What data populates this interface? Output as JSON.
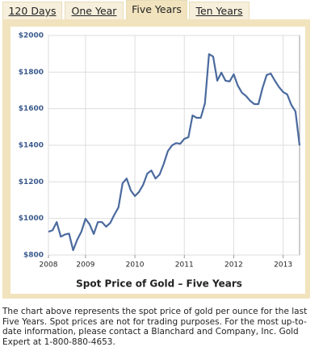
{
  "tabs": [
    {
      "label": "120 Days"
    },
    {
      "label": "One Year"
    },
    {
      "label": "Five Years"
    },
    {
      "label": "Ten Years"
    }
  ],
  "chart_data": {
    "type": "line",
    "title": "Spot Price of Gold – Five Years",
    "x": [
      2008.25,
      2008.333,
      2008.417,
      2008.5,
      2008.583,
      2008.667,
      2008.75,
      2008.833,
      2008.917,
      2009,
      2009.083,
      2009.167,
      2009.25,
      2009.333,
      2009.417,
      2009.5,
      2009.583,
      2009.667,
      2009.75,
      2009.833,
      2009.917,
      2010,
      2010.083,
      2010.167,
      2010.25,
      2010.333,
      2010.417,
      2010.5,
      2010.583,
      2010.667,
      2010.75,
      2010.833,
      2010.917,
      2011,
      2011.083,
      2011.167,
      2011.25,
      2011.333,
      2011.417,
      2011.5,
      2011.583,
      2011.667,
      2011.75,
      2011.833,
      2011.917,
      2012,
      2012.083,
      2012.167,
      2012.25,
      2012.333,
      2012.417,
      2012.5,
      2012.583,
      2012.667,
      2012.75,
      2012.833,
      2012.917,
      2013,
      2013.083,
      2013.167,
      2013.25,
      2013.333
    ],
    "series": [
      {
        "color": "#4a6a9e",
        "values": [
          927,
          935,
          980,
          900,
          912,
          917,
          826,
          884,
          928,
          998,
          968,
          915,
          980,
          980,
          955,
          975,
          1020,
          1060,
          1192,
          1218,
          1153,
          1122,
          1145,
          1184,
          1245,
          1262,
          1218,
          1240,
          1298,
          1368,
          1399,
          1412,
          1408,
          1435,
          1444,
          1563,
          1550,
          1550,
          1629,
          1898,
          1885,
          1753,
          1797,
          1753,
          1749,
          1788,
          1726,
          1687,
          1669,
          1643,
          1625,
          1625,
          1713,
          1784,
          1792,
          1753,
          1718,
          1691,
          1678,
          1620,
          1585,
          1399
        ]
      }
    ],
    "xlim": [
      2008.25,
      2013.333
    ],
    "xticks": [
      {
        "value": 2008.25,
        "label": "2008"
      },
      2009,
      2010,
      2011,
      2012,
      2013
    ],
    "ylim": [
      800,
      2000
    ],
    "yticks": [
      {
        "value": 800,
        "label": "$800"
      },
      {
        "value": 1000,
        "label": "$1000"
      },
      {
        "value": 1200,
        "label": "$1200"
      },
      {
        "value": 1400,
        "label": "$1400"
      },
      {
        "value": 1600,
        "label": "$1600"
      },
      {
        "value": 1800,
        "label": "$1800"
      },
      {
        "value": 2000,
        "label": "$2000"
      }
    ],
    "grid": true
  },
  "description": "The chart above represents the spot price of gold per ounce for the last Five Years. Spot prices are not for trading purposes. For the most up-to-date information, please contact a Blanchard and Company, Inc. Gold Expert at 1-800-880-4653."
}
